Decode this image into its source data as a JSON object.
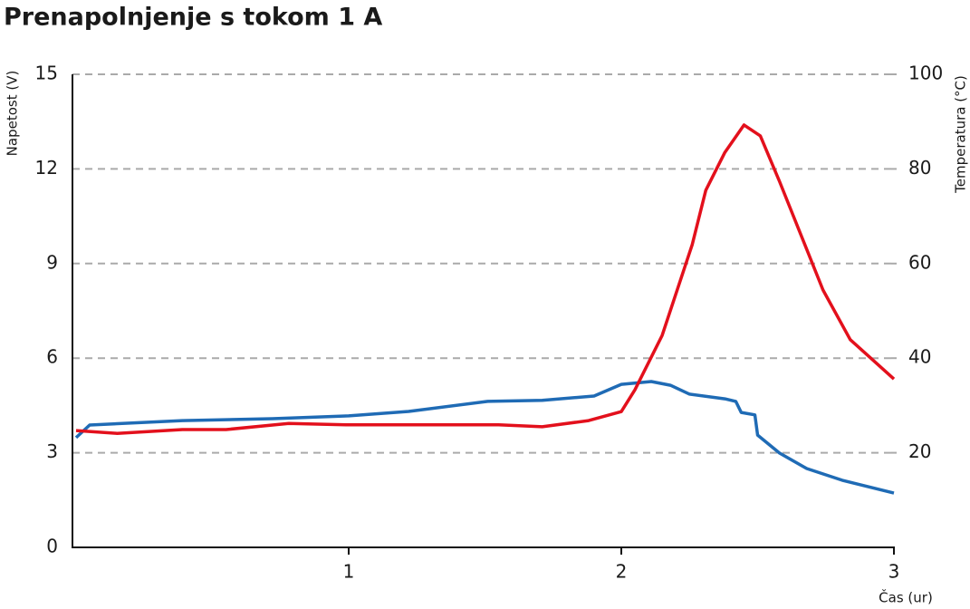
{
  "chart_data": {
    "type": "line",
    "title": "Prenapolnjenje s tokom 1 A",
    "ylabel": "Napetost (V)",
    "y2label": "Temperatura (°C)",
    "xlabel": "Čas (ur)",
    "xlim": [
      0,
      3
    ],
    "xticks": [
      1,
      2,
      3
    ],
    "ylim": [
      0,
      15
    ],
    "yticks": [
      0,
      3,
      6,
      9,
      12,
      15
    ],
    "y2lim": [
      0,
      100
    ],
    "y2ticks": [
      20,
      40,
      60,
      80,
      100
    ],
    "grid": true,
    "series": [
      {
        "name": "Napetost",
        "color": "#1f6bb5",
        "x": [
          0,
          0.05,
          0.39,
          0.72,
          1.0,
          1.22,
          1.51,
          1.71,
          1.9,
          2.0,
          2.11,
          2.18,
          2.25,
          2.38,
          2.42,
          2.44,
          2.49,
          2.5,
          2.58,
          2.68,
          2.81,
          3.0
        ],
        "values": [
          3.48,
          3.88,
          4.02,
          4.08,
          4.17,
          4.31,
          4.63,
          4.66,
          4.8,
          5.17,
          5.26,
          5.14,
          4.86,
          4.71,
          4.63,
          4.28,
          4.2,
          3.56,
          2.99,
          2.5,
          2.13,
          1.72
        ]
      },
      {
        "name": "Temperatura",
        "color": "#e3101c",
        "axis": "y2",
        "x": [
          0,
          0.15,
          0.39,
          0.55,
          0.78,
          1.0,
          1.55,
          1.71,
          1.88,
          2.0,
          2.05,
          2.15,
          2.26,
          2.31,
          2.38,
          2.45,
          2.51,
          2.58,
          2.64,
          2.74,
          2.84,
          3.0
        ],
        "values": [
          24.7,
          24.1,
          24.9,
          24.9,
          26.2,
          25.9,
          25.9,
          25.5,
          26.8,
          28.7,
          33.3,
          44.8,
          64,
          75.5,
          83.5,
          89.3,
          87,
          77.4,
          68.8,
          54.4,
          43.9,
          35.6
        ]
      }
    ]
  }
}
